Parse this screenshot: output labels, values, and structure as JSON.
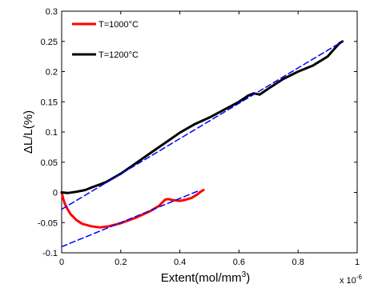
{
  "chart_data": {
    "type": "line",
    "title": "",
    "xlabel": "Extent(mol/mm",
    "xlabel_sup": "3",
    "xlabel_close": ")",
    "ylabel": "ΔL/L(%)",
    "x_multiplier": "x 10",
    "x_multiplier_exp": "-6",
    "xlim": [
      0,
      1.0
    ],
    "ylim": [
      -0.1,
      0.3
    ],
    "xticks": [
      0,
      0.2,
      0.4,
      0.6,
      0.8,
      1.0
    ],
    "xtick_labels": [
      "0",
      "0.2",
      "0.4",
      "0.6",
      "0.8",
      "1"
    ],
    "yticks": [
      -0.1,
      -0.05,
      0,
      0.05,
      0.1,
      0.15,
      0.2,
      0.25,
      0.3
    ],
    "ytick_labels": [
      "-0.1",
      "-0.05",
      "0",
      "0.05",
      "0.1",
      "0.15",
      "0.2",
      "0.25",
      "0.3"
    ],
    "grid": false,
    "legend_position": "top-left",
    "series": [
      {
        "name": "T=1000°C",
        "color": "#ff0000",
        "style": "solid",
        "x": [
          0,
          0.005,
          0.01,
          0.02,
          0.03,
          0.05,
          0.07,
          0.1,
          0.13,
          0.16,
          0.2,
          0.25,
          0.3,
          0.33,
          0.35,
          0.36,
          0.38,
          0.4,
          0.42,
          0.44,
          0.46,
          0.47,
          0.48
        ],
        "y": [
          0,
          -0.01,
          -0.018,
          -0.028,
          -0.036,
          -0.046,
          -0.052,
          -0.056,
          -0.058,
          -0.056,
          -0.051,
          -0.042,
          -0.031,
          -0.022,
          -0.012,
          -0.011,
          -0.013,
          -0.014,
          -0.012,
          -0.009,
          -0.003,
          0.001,
          0.004
        ]
      },
      {
        "name": "T=1200°C",
        "color": "#000000",
        "style": "solid",
        "x": [
          0,
          0.02,
          0.05,
          0.08,
          0.1,
          0.15,
          0.2,
          0.25,
          0.3,
          0.35,
          0.4,
          0.45,
          0.5,
          0.55,
          0.6,
          0.63,
          0.65,
          0.67,
          0.7,
          0.75,
          0.8,
          0.85,
          0.88,
          0.9,
          0.92,
          0.94,
          0.95
        ],
        "y": [
          0,
          -0.001,
          0.001,
          0.004,
          0.008,
          0.017,
          0.031,
          0.048,
          0.065,
          0.082,
          0.099,
          0.113,
          0.124,
          0.137,
          0.15,
          0.16,
          0.164,
          0.162,
          0.172,
          0.188,
          0.2,
          0.21,
          0.219,
          0.225,
          0.236,
          0.247,
          0.25
        ]
      },
      {
        "name": "",
        "color": "#0000ff",
        "style": "dashed",
        "x": [
          0,
          0.95
        ],
        "y": [
          -0.028,
          0.25
        ]
      },
      {
        "name": "",
        "color": "#0000ff",
        "style": "dashed",
        "x": [
          0,
          0.46
        ],
        "y": [
          -0.09,
          0.002
        ]
      }
    ]
  }
}
